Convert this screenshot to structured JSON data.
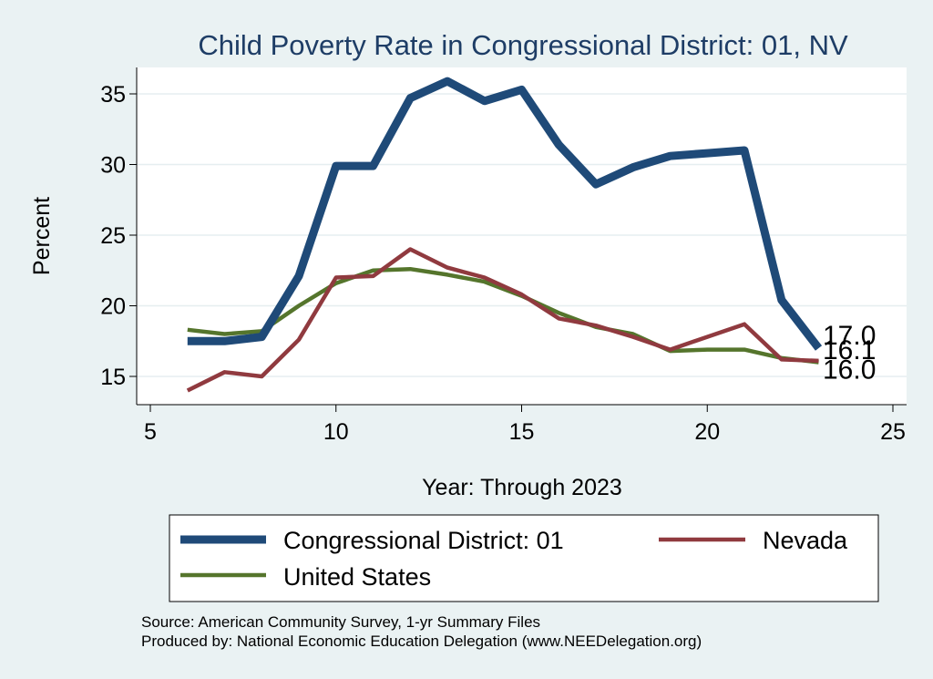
{
  "chart_data": {
    "type": "line",
    "title": "Child Poverty Rate in Congressional District:  01, NV",
    "xlabel": "Year: Through 2023",
    "ylabel": "Percent",
    "xlim": [
      5,
      25
    ],
    "ylim": [
      13,
      37
    ],
    "xticks": [
      "5",
      "10",
      "15",
      "20",
      "25"
    ],
    "yticks": [
      "15",
      "20",
      "25",
      "30",
      "35"
    ],
    "grid": true,
    "legend_position": "bottom",
    "series": [
      {
        "name": "Congressional District:  01",
        "color": "#1f4a78",
        "x": [
          6,
          7,
          8,
          9,
          10,
          11,
          12,
          13,
          14,
          15,
          16,
          17,
          18,
          19,
          20,
          21,
          22,
          23
        ],
        "values": [
          17.5,
          17.5,
          17.8,
          22.1,
          29.9,
          29.9,
          34.7,
          35.9,
          34.5,
          35.3,
          31.4,
          28.6,
          29.8,
          30.6,
          30.8,
          31.0,
          20.4,
          17.0
        ],
        "end_label": "17.0"
      },
      {
        "name": "Nevada",
        "color": "#903a3f",
        "x": [
          6,
          7,
          8,
          9,
          10,
          11,
          12,
          13,
          14,
          15,
          16,
          17,
          18,
          19,
          20,
          21,
          22,
          23
        ],
        "values": [
          14.0,
          15.3,
          15.0,
          17.6,
          22.0,
          22.1,
          24.0,
          22.7,
          22.0,
          20.8,
          19.1,
          18.6,
          17.8,
          16.9,
          17.8,
          18.7,
          16.2,
          16.1
        ],
        "end_label": "16.1"
      },
      {
        "name": "United States",
        "color": "#55752c",
        "x": [
          6,
          7,
          8,
          9,
          10,
          11,
          12,
          13,
          14,
          15,
          16,
          17,
          18,
          19,
          20,
          21,
          22,
          23
        ],
        "values": [
          18.3,
          18.0,
          18.2,
          20.0,
          21.6,
          22.5,
          22.6,
          22.2,
          21.7,
          20.7,
          19.5,
          18.5,
          18.0,
          16.8,
          16.9,
          16.9,
          16.3,
          16.0
        ],
        "end_label": "16.0"
      }
    ],
    "source_lines": [
      "Source: American Community Survey, 1-yr Summary Files",
      "Produced by: National Economic Education Delegation (www.NEEDelegation.org)"
    ]
  }
}
